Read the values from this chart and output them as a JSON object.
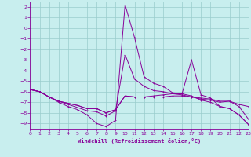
{
  "xlabel": "Windchill (Refroidissement éolien,°C)",
  "xlim": [
    0,
    23
  ],
  "ylim": [
    -9.5,
    2.5
  ],
  "yticks": [
    2,
    1,
    0,
    -1,
    -2,
    -3,
    -4,
    -5,
    -6,
    -7,
    -8,
    -9
  ],
  "xticks": [
    0,
    1,
    2,
    3,
    4,
    5,
    6,
    7,
    8,
    9,
    10,
    11,
    12,
    13,
    14,
    15,
    16,
    17,
    18,
    19,
    20,
    21,
    22,
    23
  ],
  "bg_color": "#c8eeee",
  "line_color": "#880099",
  "grid_color": "#99cccc",
  "curve1_y": [
    -5.8,
    -6.0,
    -6.5,
    -7.0,
    -7.4,
    -7.7,
    -8.2,
    -9.0,
    -9.3,
    -8.7,
    2.2,
    -0.9,
    -4.6,
    -5.2,
    -5.5,
    -6.1,
    -6.2,
    -3.0,
    -6.3,
    -6.6,
    -7.4,
    -7.6,
    -8.2,
    -9.1
  ],
  "curve2_y": [
    -5.8,
    -6.0,
    -6.5,
    -6.9,
    -7.2,
    -7.5,
    -7.8,
    -7.9,
    -8.3,
    -7.8,
    -2.5,
    -4.8,
    -5.5,
    -5.9,
    -6.0,
    -6.2,
    -6.2,
    -6.4,
    -6.8,
    -7.0,
    -7.4,
    -7.6,
    -8.2,
    -9.1
  ],
  "curve3_y": [
    -5.8,
    -6.0,
    -6.5,
    -6.9,
    -7.1,
    -7.3,
    -7.6,
    -7.6,
    -8.0,
    -7.7,
    -6.4,
    -6.5,
    -6.5,
    -6.5,
    -6.5,
    -6.4,
    -6.4,
    -6.5,
    -6.6,
    -6.7,
    -6.9,
    -6.9,
    -7.2,
    -7.4
  ],
  "curve4_y": [
    -5.8,
    -6.0,
    -6.5,
    -6.9,
    -7.1,
    -7.3,
    -7.6,
    -7.6,
    -8.0,
    -7.7,
    -6.4,
    -6.5,
    -6.5,
    -6.4,
    -6.3,
    -6.2,
    -6.3,
    -6.5,
    -6.7,
    -6.8,
    -7.0,
    -6.9,
    -7.4,
    -8.6
  ]
}
